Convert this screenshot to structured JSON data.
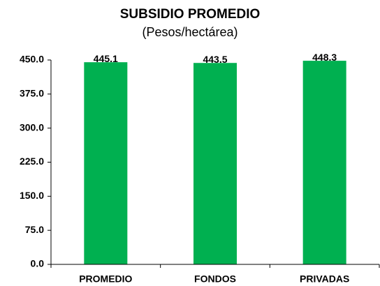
{
  "chart_data": {
    "type": "bar",
    "title": "SUBSIDIO PROMEDIO",
    "subtitle": "(Pesos/hectárea)",
    "categories": [
      "PROMEDIO",
      "FONDOS",
      "PRIVADAS"
    ],
    "values": [
      445.1,
      443.5,
      448.3
    ],
    "color": "#00b050",
    "ylim": [
      0,
      450
    ],
    "yticks": [
      {
        "value": 0,
        "label": "0.0"
      },
      {
        "value": 75,
        "label": "75.0"
      },
      {
        "value": 150,
        "label": "150.0"
      },
      {
        "value": 225,
        "label": "225.0"
      },
      {
        "value": 300,
        "label": "300.0"
      },
      {
        "value": 375,
        "label": "375.0"
      },
      {
        "value": 450,
        "label": "450.0"
      }
    ],
    "grid": false
  }
}
